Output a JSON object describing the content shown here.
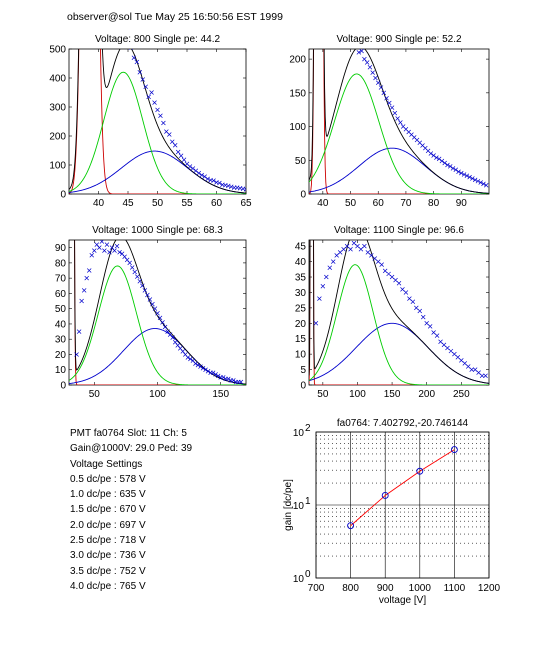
{
  "header": "observer@sol  Tue May 25 16:50:56 EST 1999",
  "info": {
    "pmt_line": "PMT fa0764 Slot: 11 Ch: 5",
    "gain_line": "Gain@1000V: 29.0 Ped: 39",
    "settings_title": "Voltage Settings",
    "settings": [
      "0.5 dc/pe : 578 V",
      "1.0 dc/pe : 635 V",
      "1.5 dc/pe : 670 V",
      "2.0 dc/pe : 697 V",
      "2.5 dc/pe : 718 V",
      "3.0 dc/pe : 736 V",
      "3.5 dc/pe : 752 V",
      "4.0 dc/pe : 765 V"
    ]
  },
  "colors": {
    "data": "#0000cc",
    "total": "#000000",
    "signal": "#00cc00",
    "background": "#0000cc",
    "pedestal": "#cc0000",
    "fit_line": "#ff0000"
  },
  "chart_data": [
    {
      "type": "scatter",
      "title": "Voltage: 800 Single pe: 44.2",
      "xlim": [
        35,
        65
      ],
      "ylim": [
        0,
        500
      ],
      "xticks": [
        40,
        45,
        50,
        55,
        60,
        65
      ],
      "yticks": [
        0,
        100,
        200,
        300,
        400,
        500
      ],
      "single_pe": 44.2,
      "fits": {
        "signal_amp": 420,
        "signal_mean": 44.2,
        "signal_sigma": 3.3,
        "bg_amp": 148,
        "bg_mean": 49.5,
        "bg_sigma": 5.6,
        "ped_mean": 38.5,
        "ped_sigma": 0.9,
        "ped_amp": 4000
      },
      "points": [
        [
          45.5,
          505
        ],
        [
          46,
          470
        ],
        [
          46.5,
          455
        ],
        [
          47,
          420
        ],
        [
          47.5,
          395
        ],
        [
          48,
          370
        ],
        [
          48.5,
          335
        ],
        [
          49,
          350
        ],
        [
          49.5,
          315
        ],
        [
          50,
          290
        ],
        [
          50.5,
          270
        ],
        [
          51,
          245
        ],
        [
          51.5,
          215
        ],
        [
          52,
          205
        ],
        [
          52.5,
          180
        ],
        [
          53,
          168
        ],
        [
          53.5,
          145
        ],
        [
          54,
          132
        ],
        [
          54.5,
          118
        ],
        [
          55,
          104
        ],
        [
          55.5,
          95
        ],
        [
          56,
          88
        ],
        [
          56.5,
          80
        ],
        [
          57,
          72
        ],
        [
          57.5,
          65
        ],
        [
          58,
          60
        ],
        [
          58.5,
          52
        ],
        [
          59,
          48
        ],
        [
          59.5,
          46
        ],
        [
          60,
          40
        ],
        [
          60.5,
          38
        ],
        [
          61,
          32
        ],
        [
          61.5,
          30
        ],
        [
          62,
          28
        ],
        [
          62.5,
          25
        ],
        [
          63,
          22
        ],
        [
          63.5,
          22
        ],
        [
          64,
          20
        ],
        [
          64.5,
          18
        ],
        [
          65,
          16
        ]
      ]
    },
    {
      "type": "scatter",
      "title": "Voltage: 900 Single pe: 52.2",
      "xlim": [
        35,
        100
      ],
      "ylim": [
        0,
        215
      ],
      "xticks": [
        40,
        50,
        60,
        70,
        80,
        90
      ],
      "yticks": [
        0,
        50,
        100,
        150,
        200
      ],
      "single_pe": 52.2,
      "fits": {
        "signal_amp": 178,
        "signal_mean": 52.2,
        "signal_sigma": 8,
        "bg_amp": 68,
        "bg_mean": 65,
        "bg_sigma": 12,
        "ped_mean": 38.5,
        "ped_sigma": 0.8,
        "ped_amp": 3000
      },
      "points": [
        [
          53,
          210
        ],
        [
          54,
          212
        ],
        [
          55,
          200
        ],
        [
          56,
          195
        ],
        [
          57,
          188
        ],
        [
          58,
          180
        ],
        [
          59,
          172
        ],
        [
          60,
          165
        ],
        [
          61,
          158
        ],
        [
          62,
          150
        ],
        [
          63,
          142
        ],
        [
          64,
          135
        ],
        [
          65,
          128
        ],
        [
          66,
          120
        ],
        [
          67,
          112
        ],
        [
          68,
          106
        ],
        [
          69,
          100
        ],
        [
          70,
          96
        ],
        [
          71,
          92
        ],
        [
          72,
          88
        ],
        [
          73,
          84
        ],
        [
          74,
          80
        ],
        [
          75,
          76
        ],
        [
          76,
          72
        ],
        [
          77,
          68
        ],
        [
          78,
          64
        ],
        [
          79,
          60
        ],
        [
          80,
          57
        ],
        [
          81,
          54
        ],
        [
          82,
          52
        ],
        [
          83,
          49
        ],
        [
          84,
          46
        ],
        [
          85,
          43
        ],
        [
          86,
          41
        ],
        [
          87,
          38
        ],
        [
          88,
          36
        ],
        [
          89,
          33
        ],
        [
          90,
          31
        ],
        [
          91,
          29
        ],
        [
          92,
          27
        ],
        [
          93,
          25
        ],
        [
          94,
          23
        ],
        [
          95,
          21
        ],
        [
          96,
          19
        ],
        [
          97,
          17
        ],
        [
          98,
          15
        ],
        [
          99,
          13
        ]
      ]
    },
    {
      "type": "scatter",
      "title": "Voltage: 1000 Single pe: 68.3",
      "xlim": [
        30,
        170
      ],
      "ylim": [
        0,
        95
      ],
      "xticks": [
        50,
        100,
        150
      ],
      "yticks": [
        0,
        10,
        20,
        30,
        40,
        50,
        60,
        70,
        80,
        90
      ],
      "single_pe": 68.3,
      "fits": {
        "signal_amp": 78,
        "signal_mean": 68.3,
        "signal_sigma": 15,
        "bg_amp": 37,
        "bg_mean": 98,
        "bg_sigma": 25,
        "ped_mean": 32,
        "ped_sigma": 1,
        "ped_amp": 1500
      },
      "points": [
        [
          36,
          20
        ],
        [
          38,
          35
        ],
        [
          40,
          55
        ],
        [
          42,
          62
        ],
        [
          44,
          70
        ],
        [
          46,
          75
        ],
        [
          48,
          85
        ],
        [
          50,
          88
        ],
        [
          52,
          92
        ],
        [
          54,
          90
        ],
        [
          56,
          94
        ],
        [
          58,
          88
        ],
        [
          60,
          92
        ],
        [
          62,
          87
        ],
        [
          64,
          90
        ],
        [
          66,
          88
        ],
        [
          68,
          91
        ],
        [
          70,
          87
        ],
        [
          72,
          86
        ],
        [
          74,
          84
        ],
        [
          76,
          82
        ],
        [
          78,
          80
        ],
        [
          80,
          77
        ],
        [
          82,
          74
        ],
        [
          84,
          71
        ],
        [
          86,
          68
        ],
        [
          88,
          65
        ],
        [
          90,
          62
        ],
        [
          92,
          59
        ],
        [
          94,
          56
        ],
        [
          96,
          53
        ],
        [
          98,
          50
        ],
        [
          100,
          47
        ],
        [
          102,
          44
        ],
        [
          104,
          41
        ],
        [
          106,
          38
        ],
        [
          108,
          35
        ],
        [
          110,
          33
        ],
        [
          112,
          31
        ],
        [
          114,
          28
        ],
        [
          116,
          26
        ],
        [
          118,
          24
        ],
        [
          120,
          22
        ],
        [
          122,
          20
        ],
        [
          124,
          18
        ],
        [
          126,
          17
        ],
        [
          128,
          16
        ],
        [
          130,
          14
        ],
        [
          132,
          13
        ],
        [
          134,
          12
        ],
        [
          136,
          11
        ],
        [
          138,
          10
        ],
        [
          140,
          9
        ],
        [
          142,
          8
        ],
        [
          144,
          8
        ],
        [
          146,
          7
        ],
        [
          148,
          6
        ],
        [
          150,
          5
        ],
        [
          152,
          5
        ],
        [
          154,
          4
        ],
        [
          156,
          4
        ],
        [
          158,
          3
        ],
        [
          160,
          3
        ],
        [
          162,
          2
        ],
        [
          164,
          2
        ],
        [
          166,
          2
        ]
      ]
    },
    {
      "type": "scatter",
      "title": "Voltage: 1100 Single pe: 96.6",
      "xlim": [
        30,
        290
      ],
      "ylim": [
        0,
        47
      ],
      "xticks": [
        50,
        100,
        150,
        200,
        250
      ],
      "yticks": [
        0,
        5,
        10,
        15,
        20,
        25,
        30,
        35,
        40,
        45
      ],
      "single_pe": 96.6,
      "fits": {
        "signal_amp": 39,
        "signal_mean": 96.6,
        "signal_sigma": 26,
        "bg_amp": 20,
        "bg_mean": 150,
        "bg_sigma": 52,
        "ped_mean": 34,
        "ped_sigma": 1,
        "ped_amp": 800
      },
      "points": [
        [
          40,
          20
        ],
        [
          45,
          28
        ],
        [
          50,
          32
        ],
        [
          55,
          35
        ],
        [
          60,
          38
        ],
        [
          65,
          40
        ],
        [
          70,
          42
        ],
        [
          75,
          43
        ],
        [
          80,
          44
        ],
        [
          85,
          45
        ],
        [
          90,
          44
        ],
        [
          95,
          46
        ],
        [
          100,
          45
        ],
        [
          105,
          44
        ],
        [
          110,
          45
        ],
        [
          115,
          43
        ],
        [
          120,
          42
        ],
        [
          125,
          41
        ],
        [
          130,
          40
        ],
        [
          135,
          39
        ],
        [
          140,
          37
        ],
        [
          145,
          36
        ],
        [
          150,
          35
        ],
        [
          155,
          34
        ],
        [
          160,
          33
        ],
        [
          165,
          31
        ],
        [
          170,
          30
        ],
        [
          175,
          28
        ],
        [
          180,
          27
        ],
        [
          185,
          25
        ],
        [
          190,
          24
        ],
        [
          195,
          22
        ],
        [
          200,
          20
        ],
        [
          205,
          19
        ],
        [
          210,
          17
        ],
        [
          215,
          16
        ],
        [
          220,
          14
        ],
        [
          225,
          13
        ],
        [
          230,
          12
        ],
        [
          235,
          11
        ],
        [
          240,
          10
        ],
        [
          245,
          9
        ],
        [
          250,
          8
        ],
        [
          255,
          7
        ],
        [
          260,
          6
        ],
        [
          265,
          5
        ],
        [
          270,
          5
        ],
        [
          275,
          4
        ],
        [
          280,
          3
        ],
        [
          285,
          3
        ]
      ]
    },
    {
      "type": "line",
      "title": "fa0764: 7.402792,-20.746144",
      "xlabel": "voltage [V]",
      "ylabel": "gain [dc/pe]",
      "xlim": [
        700,
        1200
      ],
      "ylim": [
        1,
        100
      ],
      "yscale": "log",
      "xticks": [
        700,
        800,
        900,
        1000,
        1100,
        1200
      ],
      "yticks": [
        {
          "value": 1,
          "base": "10",
          "exp": "0"
        },
        {
          "value": 10,
          "base": "10",
          "exp": "1"
        },
        {
          "value": 100,
          "base": "10",
          "exp": "2"
        }
      ],
      "grid": true,
      "x": [
        800,
        900,
        1000,
        1100
      ],
      "y": [
        5.2,
        13.5,
        29.0,
        57.4
      ]
    }
  ]
}
